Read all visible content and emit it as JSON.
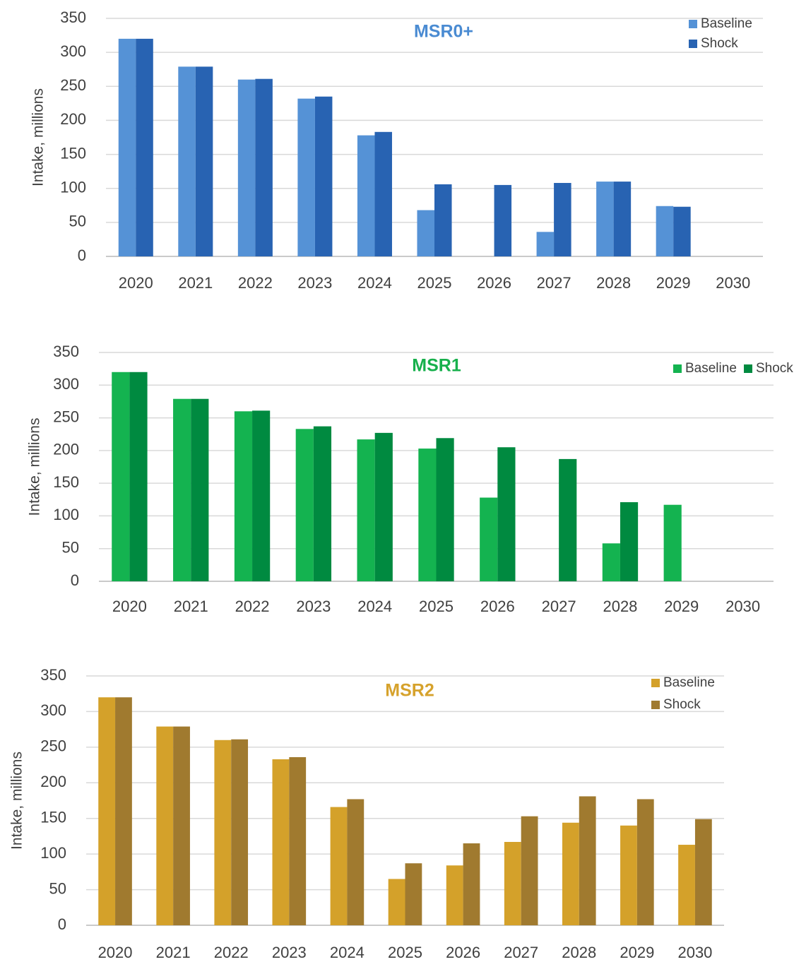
{
  "chart_data": [
    {
      "type": "bar",
      "title": "MSR0+",
      "title_color": "#4a8bd2",
      "y_label": "Intake, millions",
      "categories": [
        "2020",
        "2021",
        "2022",
        "2023",
        "2024",
        "2025",
        "2026",
        "2027",
        "2028",
        "2029",
        "2030"
      ],
      "series": [
        {
          "name": "Baseline",
          "color": "#5592d6",
          "values": [
            320,
            279,
            260,
            232,
            178,
            68,
            0,
            36,
            110,
            74,
            0
          ]
        },
        {
          "name": "Shock",
          "color": "#2863b2",
          "values": [
            320,
            279,
            261,
            235,
            183,
            106,
            105,
            108,
            110,
            73,
            0
          ]
        }
      ],
      "ylim": [
        0,
        350
      ],
      "yticks": [
        0,
        50,
        100,
        150,
        200,
        250,
        300,
        350
      ],
      "grid": true,
      "legend": "upper right"
    },
    {
      "type": "bar",
      "title": "MSR1",
      "title_color": "#17b04c",
      "y_label": "Intake, millions",
      "categories": [
        "2020",
        "2021",
        "2022",
        "2023",
        "2024",
        "2025",
        "2026",
        "2027",
        "2028",
        "2029",
        "2030"
      ],
      "series": [
        {
          "name": "Baseline",
          "color": "#14b350",
          "values": [
            320,
            279,
            260,
            233,
            217,
            203,
            128,
            0,
            58,
            117,
            0
          ]
        },
        {
          "name": "Shock",
          "color": "#008a40",
          "values": [
            320,
            279,
            261,
            237,
            227,
            219,
            205,
            187,
            121,
            0,
            0
          ]
        }
      ],
      "ylim": [
        0,
        350
      ],
      "yticks": [
        0,
        50,
        100,
        150,
        200,
        250,
        300,
        350
      ],
      "grid": true,
      "legend": "upper right"
    },
    {
      "type": "bar",
      "title": "MSR2",
      "title_color": "#d6a22c",
      "y_label": "Intake, millions",
      "categories": [
        "2020",
        "2021",
        "2022",
        "2023",
        "2024",
        "2025",
        "2026",
        "2027",
        "2028",
        "2029",
        "2030"
      ],
      "series": [
        {
          "name": "Baseline",
          "color": "#d4a12a",
          "values": [
            320,
            279,
            260,
            233,
            166,
            65,
            84,
            117,
            144,
            140,
            113
          ]
        },
        {
          "name": "Shock",
          "color": "#a07a2f",
          "values": [
            320,
            279,
            261,
            236,
            177,
            87,
            115,
            153,
            181,
            177,
            149
          ]
        }
      ],
      "ylim": [
        0,
        350
      ],
      "yticks": [
        0,
        50,
        100,
        150,
        200,
        250,
        300,
        350
      ],
      "grid": true,
      "legend": "upper right"
    }
  ]
}
